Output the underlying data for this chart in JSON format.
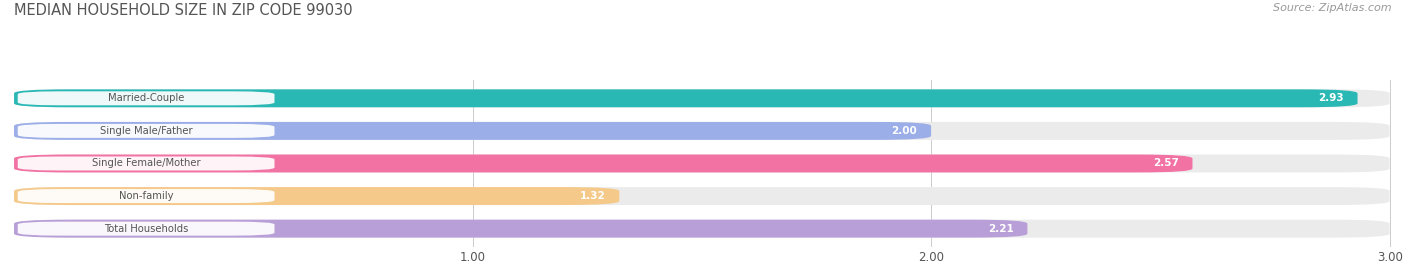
{
  "title": "MEDIAN HOUSEHOLD SIZE IN ZIP CODE 99030",
  "source": "Source: ZipAtlas.com",
  "categories": [
    "Married-Couple",
    "Single Male/Father",
    "Single Female/Mother",
    "Non-family",
    "Total Households"
  ],
  "values": [
    2.93,
    2.0,
    2.57,
    1.32,
    2.21
  ],
  "bar_colors": [
    "#2ab8b5",
    "#9baee8",
    "#f272a4",
    "#f5c98a",
    "#b89fd8"
  ],
  "bar_bg_color": "#ebebeb",
  "value_label_color": "#ffffff",
  "label_text_color": "#555555",
  "title_color": "#555555",
  "source_color": "#999999",
  "xmin": 0,
  "xmax": 3.0,
  "xticks": [
    1.0,
    2.0,
    3.0
  ],
  "bar_height": 0.55,
  "bar_gap": 1.0,
  "figsize": [
    14.06,
    2.68
  ],
  "dpi": 100,
  "background_color": "#ffffff"
}
